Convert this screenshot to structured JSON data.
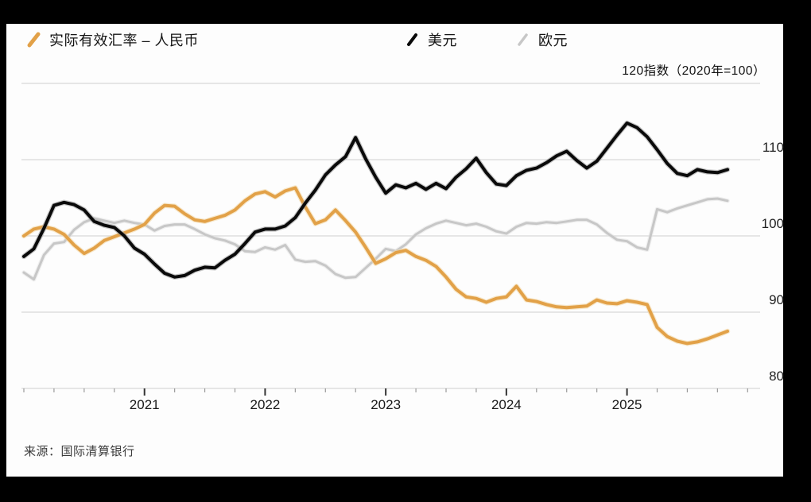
{
  "frame": {
    "bar_color": "#000000",
    "panel_color": "#fdfdfd"
  },
  "legend": {
    "items": [
      {
        "id": "cny",
        "label": "实际有效汇率 – 人民币",
        "color": "#E2A148",
        "halo": "#F3D9A8",
        "stroke_width": 4
      },
      {
        "id": "usd",
        "label": "美元",
        "color": "#0A0A0A",
        "halo": "#9a9a9a",
        "stroke_width": 4
      },
      {
        "id": "eur",
        "label": "欧元",
        "color": "#C7C7C7",
        "halo": "#e4e4e4",
        "stroke_width": 3
      }
    ]
  },
  "axis_note_suffix": "指数（2020年=100）",
  "source_text": "来源：国际清算银行",
  "chart_data": {
    "type": "line",
    "title": "",
    "x_start": "2020-01",
    "frequency": "monthly",
    "ylim": [
      80,
      120
    ],
    "y_ticks": [
      120,
      110,
      100,
      90,
      80
    ],
    "grid": true,
    "legend_position": "top",
    "x_tick_labels": [
      "2021",
      "2022",
      "2023",
      "2024",
      "2025"
    ],
    "x_tick_month_index": [
      12,
      24,
      36,
      48,
      60
    ],
    "series": [
      {
        "name": "实际有效汇率 – 人民币",
        "color": "#E2A148",
        "values": [
          100.0,
          100.9,
          101.2,
          100.9,
          100.2,
          98.8,
          97.7,
          98.4,
          99.4,
          99.9,
          100.4,
          100.9,
          101.5,
          103.0,
          104.0,
          103.9,
          102.9,
          102.1,
          101.9,
          102.3,
          102.7,
          103.4,
          104.6,
          105.5,
          105.8,
          105.1,
          105.9,
          106.3,
          103.8,
          101.6,
          102.1,
          103.4,
          102.0,
          100.5,
          98.5,
          96.4,
          97.0,
          97.8,
          98.1,
          97.3,
          96.8,
          96.0,
          94.6,
          93.0,
          92.0,
          91.8,
          91.3,
          91.8,
          92.0,
          93.4,
          91.6,
          91.4,
          91.0,
          90.7,
          90.6,
          90.7,
          90.8,
          91.6,
          91.2,
          91.1,
          91.5,
          91.3,
          91.0,
          88.0,
          86.8,
          86.2,
          85.9,
          86.1,
          86.5,
          87.0,
          87.5
        ]
      },
      {
        "name": "美元",
        "color": "#0A0A0A",
        "values": [
          97.3,
          98.3,
          101.0,
          104.0,
          104.4,
          104.1,
          103.4,
          101.9,
          101.4,
          101.1,
          100.0,
          98.4,
          97.6,
          96.3,
          95.1,
          94.6,
          94.8,
          95.5,
          95.9,
          95.8,
          96.8,
          97.6,
          99.0,
          100.5,
          100.9,
          100.9,
          101.3,
          102.4,
          104.3,
          106.0,
          108.0,
          109.3,
          110.4,
          112.9,
          110.1,
          107.7,
          105.6,
          106.7,
          106.3,
          106.9,
          106.1,
          106.9,
          106.2,
          107.7,
          108.8,
          110.2,
          108.3,
          106.8,
          106.6,
          107.9,
          108.6,
          108.9,
          109.6,
          110.5,
          111.1,
          109.9,
          108.9,
          109.8,
          111.5,
          113.2,
          114.8,
          114.2,
          113.0,
          111.3,
          109.5,
          108.2,
          107.9,
          108.7,
          108.4,
          108.3,
          108.7
        ]
      },
      {
        "name": "欧元",
        "color": "#C7C7C7",
        "values": [
          95.2,
          94.3,
          97.5,
          99.0,
          99.2,
          100.8,
          101.8,
          102.3,
          102.0,
          101.7,
          102.0,
          101.7,
          101.5,
          100.7,
          101.3,
          101.5,
          101.5,
          100.9,
          100.2,
          99.7,
          99.4,
          98.9,
          98.0,
          97.9,
          98.5,
          98.2,
          98.8,
          96.9,
          96.6,
          96.7,
          96.1,
          95.0,
          94.5,
          94.6,
          95.8,
          97.0,
          98.3,
          98.0,
          98.9,
          100.2,
          101.0,
          101.6,
          102.0,
          101.7,
          101.4,
          101.6,
          101.2,
          100.6,
          100.3,
          101.2,
          101.7,
          101.6,
          101.8,
          101.7,
          101.9,
          102.1,
          102.1,
          101.5,
          100.4,
          99.5,
          99.3,
          98.5,
          98.2,
          103.5,
          103.1,
          103.6,
          104.0,
          104.4,
          104.8,
          104.9,
          104.6
        ]
      }
    ]
  }
}
